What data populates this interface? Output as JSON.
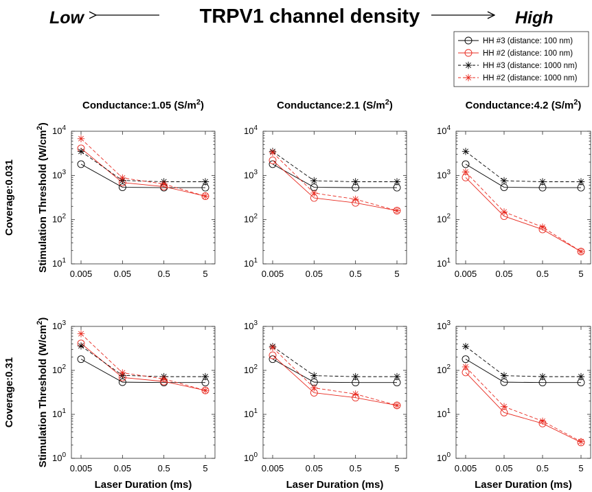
{
  "header": {
    "low_label": "Low",
    "high_label": "High",
    "title": "TRPV1 channel density"
  },
  "legend": {
    "position": "top-right",
    "entries": [
      {
        "label": "HH #3 (distance: 100 nm)",
        "color": "#000000",
        "marker": "circle",
        "line": "solid"
      },
      {
        "label": "HH #2 (distance: 100 nm)",
        "color": "#e8281e",
        "marker": "circle",
        "line": "solid"
      },
      {
        "label": "HH #3 (distance: 1000 nm)",
        "color": "#000000",
        "marker": "asterisk",
        "line": "dashed"
      },
      {
        "label": "HH #2 (distance: 1000 nm)",
        "color": "#e8281e",
        "marker": "asterisk",
        "line": "dashed"
      }
    ]
  },
  "row_labels": [
    "Coverage:0.031",
    "Coverage:0.31"
  ],
  "column_titles": [
    {
      "text": "Conductance:1.05 (S/m",
      "sup": "2",
      "close": ")"
    },
    {
      "text": "Conductance:2.1 (S/m",
      "sup": "2",
      "close": ")"
    },
    {
      "text": "Conductance:4.2 (S/m",
      "sup": "2",
      "close": ")"
    }
  ],
  "axis_text": {
    "ylabel_main": "Stimulation Threshold (W/cm",
    "ylabel_sup": "2",
    "ylabel_close": ")",
    "xlabel": "Laser Duration (ms)",
    "log_base": "10"
  },
  "chart_data": [
    {
      "type": "line",
      "row": 0,
      "col": 0,
      "yscale": "log",
      "ylim_exp": [
        1,
        4
      ],
      "x": [
        "0.005",
        "0.05",
        "0.5",
        "5"
      ],
      "series": [
        {
          "legend_index": 0,
          "values": [
            1800,
            540,
            530,
            530
          ]
        },
        {
          "legend_index": 1,
          "values": [
            4100,
            690,
            560,
            340
          ]
        },
        {
          "legend_index": 2,
          "values": [
            3500,
            770,
            720,
            720
          ]
        },
        {
          "legend_index": 3,
          "values": [
            6800,
            880,
            640,
            340
          ]
        }
      ]
    },
    {
      "type": "line",
      "row": 0,
      "col": 1,
      "yscale": "log",
      "ylim_exp": [
        1,
        4
      ],
      "x": [
        "0.005",
        "0.05",
        "0.5",
        "5"
      ],
      "series": [
        {
          "legend_index": 0,
          "values": [
            1800,
            540,
            530,
            530
          ]
        },
        {
          "legend_index": 1,
          "values": [
            2200,
            310,
            240,
            160
          ]
        },
        {
          "legend_index": 2,
          "values": [
            3500,
            760,
            720,
            720
          ]
        },
        {
          "legend_index": 3,
          "values": [
            3300,
            400,
            290,
            160
          ]
        }
      ]
    },
    {
      "type": "line",
      "row": 0,
      "col": 2,
      "yscale": "log",
      "ylim_exp": [
        1,
        4
      ],
      "x": [
        "0.005",
        "0.05",
        "0.5",
        "5"
      ],
      "series": [
        {
          "legend_index": 0,
          "values": [
            1800,
            540,
            530,
            530
          ]
        },
        {
          "legend_index": 1,
          "values": [
            900,
            120,
            60,
            19
          ]
        },
        {
          "legend_index": 2,
          "values": [
            3500,
            760,
            720,
            720
          ]
        },
        {
          "legend_index": 3,
          "values": [
            1200,
            150,
            68,
            19
          ]
        }
      ]
    },
    {
      "type": "line",
      "row": 1,
      "col": 0,
      "yscale": "log",
      "ylim_exp": [
        0,
        3
      ],
      "x": [
        "0.005",
        "0.05",
        "0.5",
        "5"
      ],
      "series": [
        {
          "legend_index": 0,
          "values": [
            180,
            54,
            53,
            53
          ]
        },
        {
          "legend_index": 1,
          "values": [
            410,
            69,
            56,
            35
          ]
        },
        {
          "legend_index": 2,
          "values": [
            360,
            77,
            72,
            72
          ]
        },
        {
          "legend_index": 3,
          "values": [
            680,
            88,
            64,
            35
          ]
        }
      ]
    },
    {
      "type": "line",
      "row": 1,
      "col": 1,
      "yscale": "log",
      "ylim_exp": [
        0,
        3
      ],
      "x": [
        "0.005",
        "0.05",
        "0.5",
        "5"
      ],
      "series": [
        {
          "legend_index": 0,
          "values": [
            180,
            54,
            53,
            53
          ]
        },
        {
          "legend_index": 1,
          "values": [
            220,
            31,
            24,
            16
          ]
        },
        {
          "legend_index": 2,
          "values": [
            350,
            76,
            72,
            72
          ]
        },
        {
          "legend_index": 3,
          "values": [
            330,
            40,
            29,
            16
          ]
        }
      ]
    },
    {
      "type": "line",
      "row": 1,
      "col": 2,
      "yscale": "log",
      "ylim_exp": [
        0,
        3
      ],
      "x": [
        "0.005",
        "0.05",
        "0.5",
        "5"
      ],
      "series": [
        {
          "legend_index": 0,
          "values": [
            180,
            54,
            53,
            53
          ]
        },
        {
          "legend_index": 1,
          "values": [
            90,
            11,
            6.2,
            2.3
          ]
        },
        {
          "legend_index": 2,
          "values": [
            350,
            76,
            72,
            72
          ]
        },
        {
          "legend_index": 3,
          "values": [
            120,
            15,
            7,
            2.4
          ]
        }
      ]
    }
  ]
}
